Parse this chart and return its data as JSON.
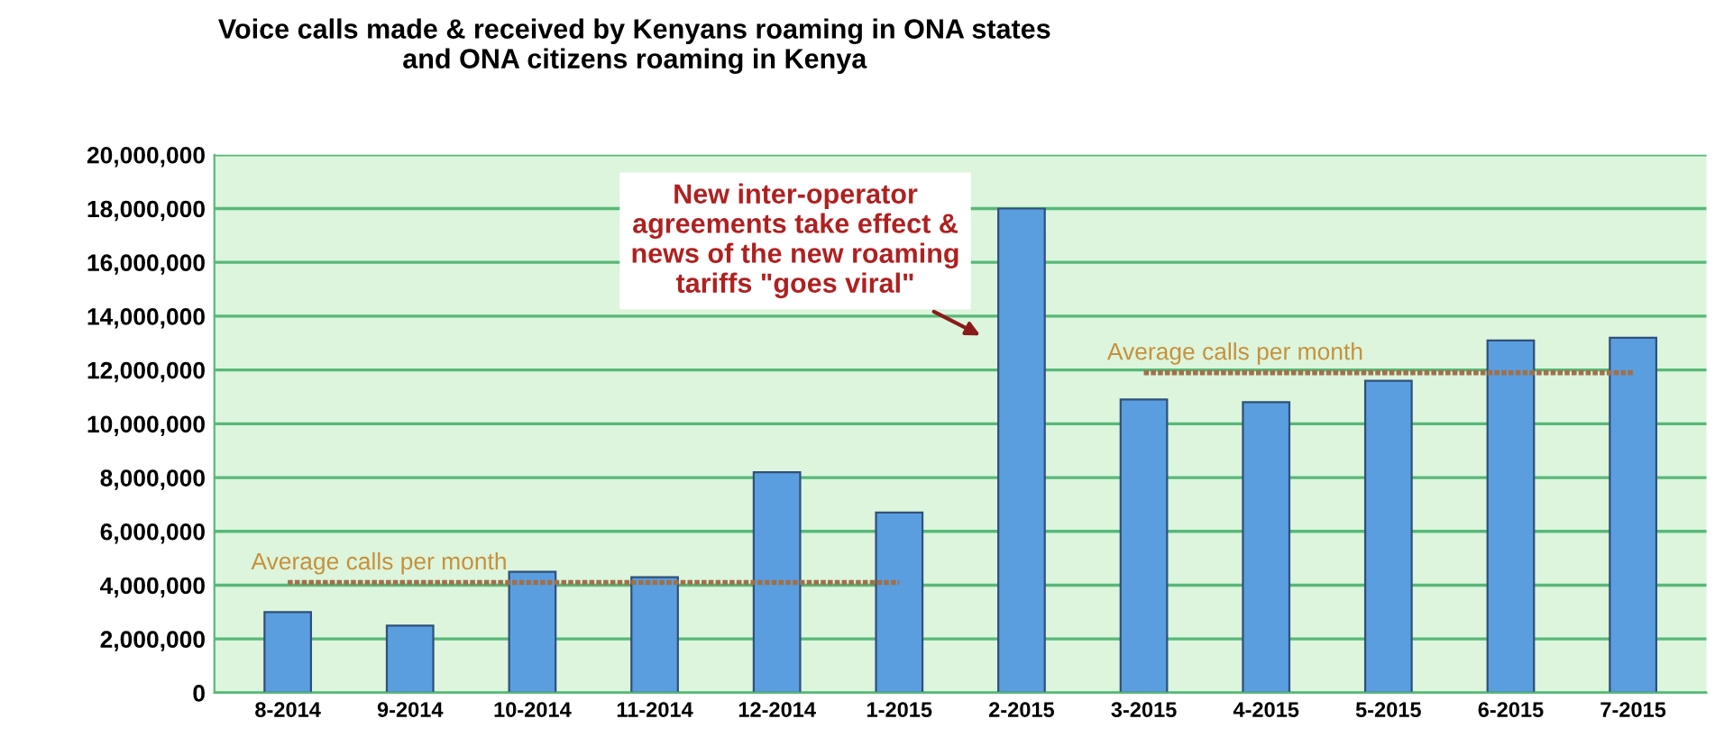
{
  "chart_data": {
    "type": "bar",
    "title": "Voice calls made & received by Kenyans roaming in ONA states\nand ONA citizens roaming in Kenya",
    "categories": [
      "8-2014",
      "9-2014",
      "10-2014",
      "11-2014",
      "12-2014",
      "1-2015",
      "2-2015",
      "3-2015",
      "4-2015",
      "5-2015",
      "6-2015",
      "7-2015"
    ],
    "series": [
      {
        "color": "#5a9ee0",
        "values": [
          3000000,
          2500000,
          4500000,
          4300000,
          8200000,
          6700000,
          18000000,
          10900000,
          10800000,
          11600000,
          13100000,
          13200000
        ]
      },
      {
        "type": "line",
        "name": "Average calls per month",
        "color": "#a0704a",
        "line_style": "dotted",
        "values": [
          4100000,
          4100000,
          4100000,
          4100000,
          4100000,
          4100000,
          null,
          null,
          null,
          null,
          null,
          null
        ]
      },
      {
        "type": "line",
        "name": "Average calls per month",
        "color": "#a0704a",
        "line_style": "dotted",
        "values": [
          null,
          null,
          null,
          null,
          null,
          null,
          null,
          11900000,
          11900000,
          11900000,
          11900000,
          11900000
        ]
      }
    ],
    "ylim": [
      0,
      20000000
    ],
    "yticks": [
      {
        "value": 0,
        "label": "0"
      },
      {
        "value": 2000000,
        "label": "2,000,000"
      },
      {
        "value": 4000000,
        "label": "4,000,000"
      },
      {
        "value": 6000000,
        "label": "6,000,000"
      },
      {
        "value": 8000000,
        "label": "8,000,000"
      },
      {
        "value": 10000000,
        "label": "10,000,000"
      },
      {
        "value": 12000000,
        "label": "12,000,000"
      },
      {
        "value": 14000000,
        "label": "14,000,000"
      },
      {
        "value": 16000000,
        "label": "16,000,000"
      },
      {
        "value": 18000000,
        "label": "18,000,000"
      },
      {
        "value": 20000000,
        "label": "20,000,000"
      }
    ],
    "grid": "y",
    "annotations": [
      "New inter-operator\nagreements take effect &\nnews of the new roaming\ntariffs \"goes viral\""
    ]
  }
}
